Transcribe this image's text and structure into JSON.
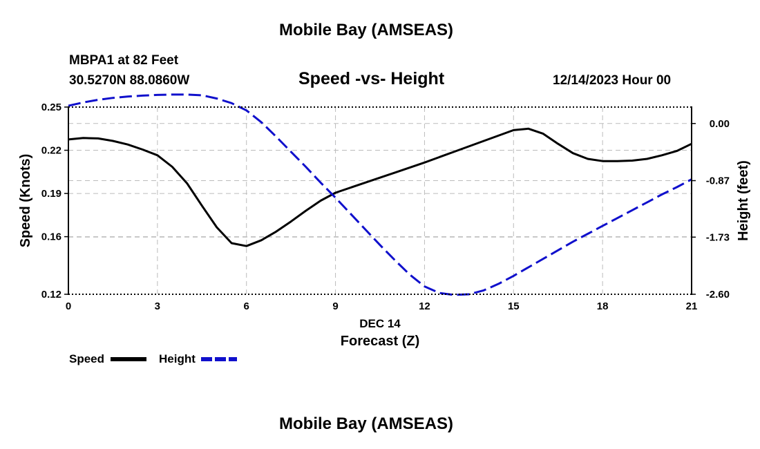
{
  "header": {
    "title_top": "Mobile Bay (AMSEAS)",
    "station_line": "MBPA1 at 82 Feet",
    "coords_line": "30.5270N  88.0860W",
    "chart_subtitle": "Speed -vs- Height",
    "date_line": "12/14/2023 Hour 00",
    "title_bottom": "Mobile Bay (AMSEAS)"
  },
  "legend": {
    "speed_label": "Speed",
    "height_label": "Height"
  },
  "colors": {
    "speed": "#000000",
    "height": "#1010cc",
    "grid": "#bbbbbb",
    "frame": "#000000"
  },
  "chart_data": {
    "type": "line",
    "title": "Speed -vs- Height",
    "xlabel": "Forecast (Z)",
    "xlabel_date": "DEC 14",
    "ylabel": "Speed (Knots)",
    "y2label": "Height (feet)",
    "xlim": [
      0,
      21
    ],
    "ylim": [
      0.12,
      0.25
    ],
    "y2lim": [
      -2.6,
      0.25
    ],
    "x_ticks": [
      0,
      3,
      6,
      9,
      12,
      15,
      18,
      21
    ],
    "x_tick_labels": [
      "0",
      "3",
      "6",
      "9",
      "12",
      "15",
      "18",
      "21"
    ],
    "y_ticks": [
      0.25,
      0.22,
      0.19,
      0.16,
      0.12
    ],
    "y_tick_labels": [
      "0.25",
      "0.22",
      "0.19",
      "0.16",
      "0.12"
    ],
    "y2_ticks": [
      0.0,
      -0.87,
      -1.73,
      -2.6
    ],
    "y2_tick_labels": [
      "0.00",
      "-0.87",
      "-1.73",
      "-2.60"
    ],
    "grid": true,
    "series": [
      {
        "name": "Speed",
        "axis": "left",
        "style": "solid",
        "x": [
          0,
          0.5,
          1,
          1.5,
          2,
          2.5,
          3,
          3.5,
          4,
          4.5,
          5,
          5.5,
          6,
          6.5,
          7,
          7.5,
          8,
          8.5,
          9,
          10,
          11,
          12,
          13,
          14,
          15,
          15.5,
          16,
          16.5,
          17,
          17.5,
          18,
          18.5,
          19,
          19.5,
          20,
          20.5,
          21
        ],
        "values": [
          0.2275,
          0.2285,
          0.2282,
          0.2265,
          0.224,
          0.2205,
          0.2165,
          0.2085,
          0.197,
          0.1815,
          0.1665,
          0.1555,
          0.1535,
          0.1575,
          0.1635,
          0.1705,
          0.178,
          0.185,
          0.1905,
          0.1975,
          0.2045,
          0.2115,
          0.219,
          0.2265,
          0.234,
          0.235,
          0.2315,
          0.2245,
          0.218,
          0.214,
          0.2125,
          0.2125,
          0.2128,
          0.214,
          0.2165,
          0.2195,
          0.2245
        ]
      },
      {
        "name": "Height",
        "axis": "right",
        "style": "dashed",
        "x": [
          0,
          0.5,
          1,
          1.5,
          2,
          2.5,
          3,
          3.5,
          4,
          4.5,
          5,
          5.5,
          6,
          6.5,
          7,
          7.5,
          8,
          8.5,
          9,
          9.5,
          10,
          10.5,
          11,
          11.5,
          12,
          12.5,
          13,
          13.5,
          14,
          14.5,
          15,
          15.5,
          16,
          16.5,
          17,
          17.5,
          18,
          18.5,
          19,
          19.5,
          20,
          20.5,
          21
        ],
        "values": [
          0.27,
          0.32,
          0.36,
          0.39,
          0.41,
          0.425,
          0.435,
          0.44,
          0.44,
          0.43,
          0.38,
          0.31,
          0.2,
          0.02,
          -0.2,
          -0.43,
          -0.66,
          -0.9,
          -1.13,
          -1.37,
          -1.61,
          -1.85,
          -2.08,
          -2.3,
          -2.48,
          -2.58,
          -2.61,
          -2.6,
          -2.54,
          -2.44,
          -2.32,
          -2.19,
          -2.06,
          -1.93,
          -1.8,
          -1.68,
          -1.56,
          -1.44,
          -1.32,
          -1.2,
          -1.08,
          -0.97,
          -0.85
        ]
      }
    ]
  }
}
